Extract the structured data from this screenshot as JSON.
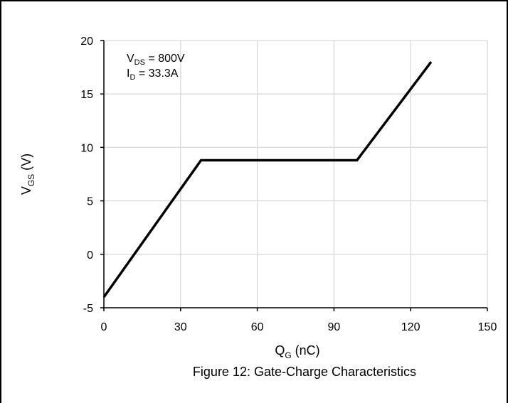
{
  "chart_data": {
    "type": "line",
    "title": "",
    "caption": "Figure 12: Gate-Charge Characteristics",
    "xlabel": {
      "main": "Q",
      "sub": "G",
      "rest": " (nC)"
    },
    "ylabel": {
      "main": "V",
      "sub": "GS",
      "rest": " (V)"
    },
    "xlim": [
      0,
      150
    ],
    "ylim": [
      -5,
      20
    ],
    "xticks": [
      0,
      30,
      60,
      90,
      120,
      150
    ],
    "yticks": [
      -5,
      0,
      5,
      10,
      15,
      20
    ],
    "grid": true,
    "annotations": [
      {
        "main": "V",
        "sub": "DS",
        "rest": " = 800V"
      },
      {
        "main": "I",
        "sub": "D",
        "rest": " = 33.3A"
      }
    ],
    "series": [
      {
        "x": [
          0,
          38,
          99,
          128
        ],
        "y": [
          -4,
          8.8,
          8.8,
          18
        ]
      }
    ],
    "line_color": "#000000",
    "grid_color": "#d9d9d9"
  }
}
